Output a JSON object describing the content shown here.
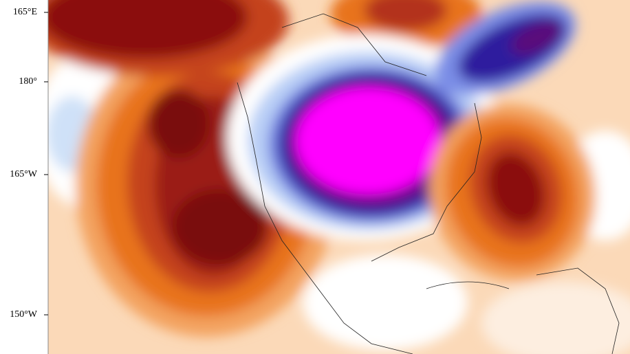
{
  "left_axis_labels": [
    "165°E",
    "180°",
    "165°W",
    "150°W"
  ]
}
